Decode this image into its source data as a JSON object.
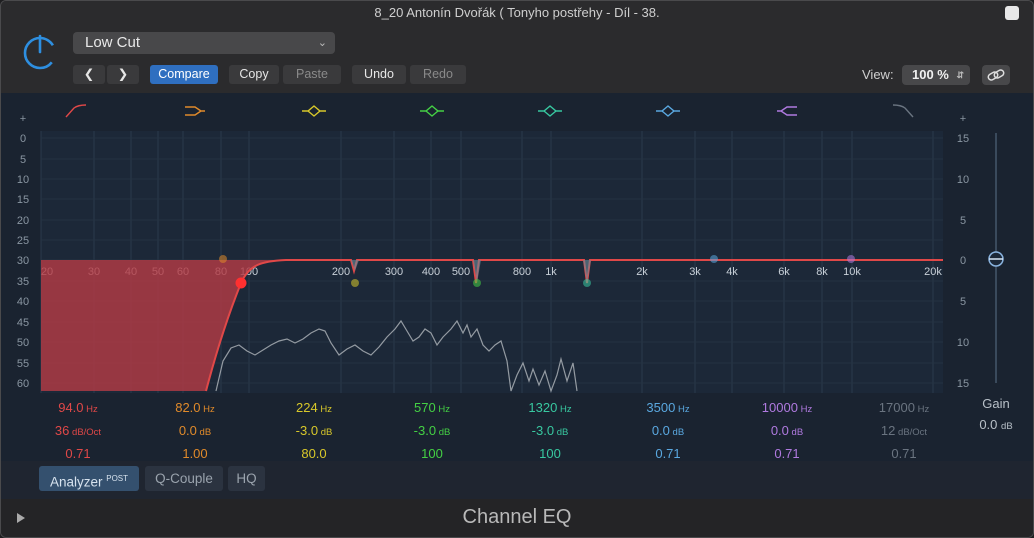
{
  "window": {
    "title": "8_20 Antonín Dvořák ( Tonyho postřehy - Díl - 38."
  },
  "header": {
    "preset": "Low Cut",
    "compare_label": "Compare",
    "copy_label": "Copy",
    "paste_label": "Paste",
    "undo_label": "Undo",
    "redo_label": "Redo",
    "view_label": "View:",
    "view_value": "100 %"
  },
  "graph": {
    "left_scale": [
      "+",
      "0",
      "5",
      "10",
      "15",
      "20",
      "25",
      "30",
      "35",
      "40",
      "45",
      "50",
      "55",
      "60"
    ],
    "right_scale": [
      "+",
      "15",
      "",
      "10",
      "",
      "5",
      "",
      "0",
      "",
      "5",
      "",
      "10",
      "",
      "15"
    ],
    "freq_labels": [
      "20",
      "30",
      "40",
      "50",
      "60",
      "80",
      "100",
      "200",
      "300",
      "400",
      "500",
      "800",
      "1k",
      "2k",
      "3k",
      "4k",
      "6k",
      "8k",
      "10k",
      "20k"
    ]
  },
  "bands": [
    {
      "freq": "94.0",
      "freq_unit": "Hz",
      "gain": "36",
      "gain_unit": "dB/Oct",
      "q": "0.71",
      "color": "#e04848"
    },
    {
      "freq": "82.0",
      "freq_unit": "Hz",
      "gain": "0.0",
      "gain_unit": "dB",
      "q": "1.00",
      "color": "#e08a2a"
    },
    {
      "freq": "224",
      "freq_unit": "Hz",
      "gain": "-3.0",
      "gain_unit": "dB",
      "q": "80.0",
      "color": "#d8c82a"
    },
    {
      "freq": "570",
      "freq_unit": "Hz",
      "gain": "-3.0",
      "gain_unit": "dB",
      "q": "100",
      "color": "#44d044"
    },
    {
      "freq": "1320",
      "freq_unit": "Hz",
      "gain": "-3.0",
      "gain_unit": "dB",
      "q": "100",
      "color": "#38c8a0"
    },
    {
      "freq": "3500",
      "freq_unit": "Hz",
      "gain": "0.0",
      "gain_unit": "dB",
      "q": "0.71",
      "color": "#5aa8e0"
    },
    {
      "freq": "10000",
      "freq_unit": "Hz",
      "gain": "0.0",
      "gain_unit": "dB",
      "q": "0.71",
      "color": "#b07ae0"
    },
    {
      "freq": "17000",
      "freq_unit": "Hz",
      "gain": "12",
      "gain_unit": "dB/Oct",
      "q": "0.71",
      "color": "#6a7480"
    }
  ],
  "gain": {
    "label": "Gain",
    "value": "0.0",
    "unit": "dB"
  },
  "toolbar": {
    "analyzer_label": "Analyzer",
    "analyzer_sup": "POST",
    "qcouple_label": "Q-Couple",
    "hq_label": "HQ"
  },
  "footer": {
    "title": "Channel EQ"
  }
}
